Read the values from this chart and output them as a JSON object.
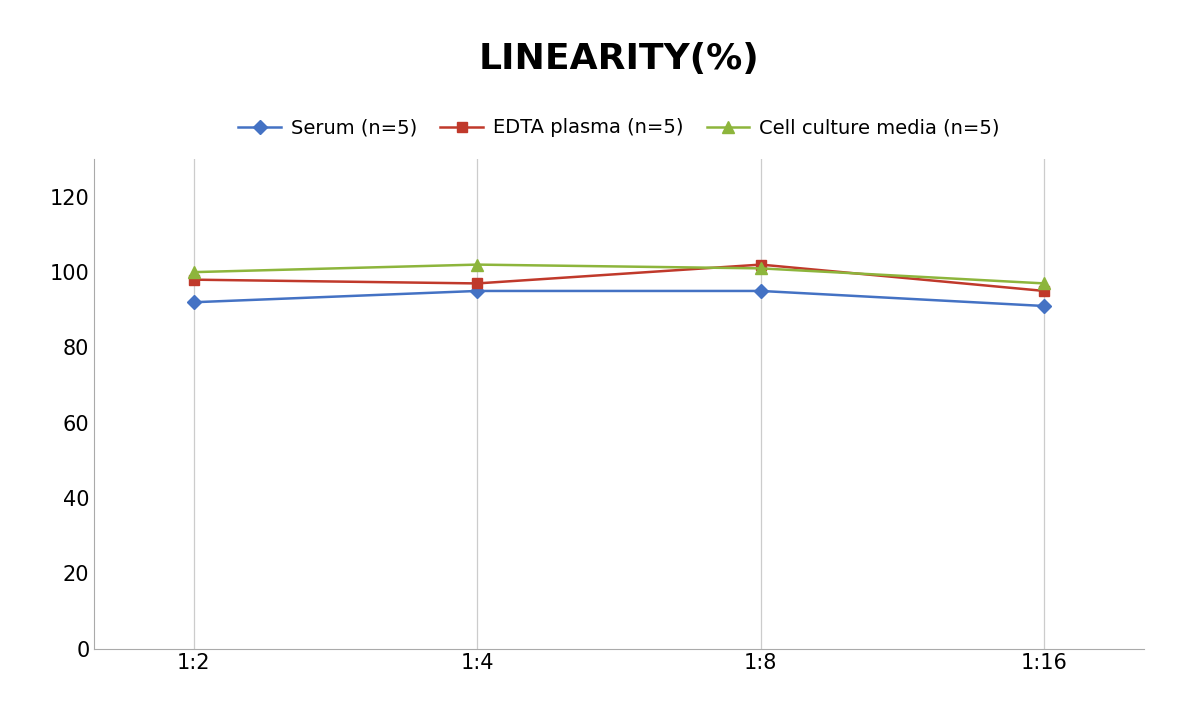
{
  "title": "LINEARITY(%)",
  "x_labels": [
    "1:2",
    "1:4",
    "1:8",
    "1:16"
  ],
  "x_positions": [
    0,
    1,
    2,
    3
  ],
  "series": [
    {
      "label": "Serum (n=5)",
      "values": [
        92,
        95,
        95,
        91
      ],
      "color": "#4472C4",
      "marker": "D",
      "marker_size": 7,
      "linewidth": 1.8
    },
    {
      "label": "EDTA plasma (n=5)",
      "values": [
        98,
        97,
        102,
        95
      ],
      "color": "#C0392B",
      "marker": "s",
      "marker_size": 7,
      "linewidth": 1.8
    },
    {
      "label": "Cell culture media (n=5)",
      "values": [
        100,
        102,
        101,
        97
      ],
      "color": "#8DB53C",
      "marker": "^",
      "marker_size": 8,
      "linewidth": 1.8
    }
  ],
  "ylim": [
    0,
    130
  ],
  "yticks": [
    0,
    20,
    40,
    60,
    80,
    100,
    120
  ],
  "background_color": "#ffffff",
  "grid_color": "#cccccc",
  "title_fontsize": 26,
  "tick_fontsize": 15,
  "legend_fontsize": 14
}
